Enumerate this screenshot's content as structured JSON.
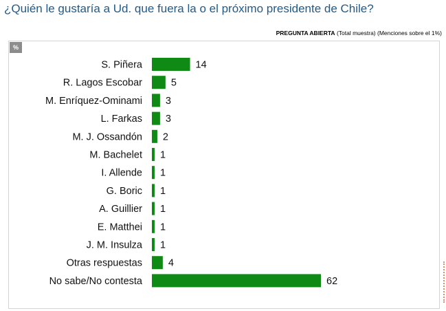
{
  "header": {
    "question": "¿Quién le gustaría a Ud. que fuera la o el próximo presidente de Chile?",
    "note_bold": "PREGUNTA ABIERTA",
    "note_rest": " (Total muestra) (Menciones sobre el 1%)",
    "unit_badge": "%"
  },
  "chart_data": {
    "type": "bar",
    "orientation": "horizontal",
    "categories": [
      "S. Piñera",
      "R. Lagos Escobar",
      "M. Enríquez-Ominami",
      "L. Farkas",
      "M. J. Ossandón",
      "M. Bachelet",
      "I. Allende",
      "G. Boric",
      "A. Guillier",
      "E. Matthei",
      "J. M. Insulza",
      "Otras respuestas",
      "No sabe/No contesta"
    ],
    "values": [
      14,
      5,
      3,
      3,
      2,
      1,
      1,
      1,
      1,
      1,
      1,
      4,
      62
    ],
    "title": "¿Quién le gustaría a Ud. que fuera la o el próximo presidente de Chile?",
    "color": "#0f8a14",
    "data_labels": true,
    "grid": false,
    "xlim": [
      0,
      62
    ]
  }
}
